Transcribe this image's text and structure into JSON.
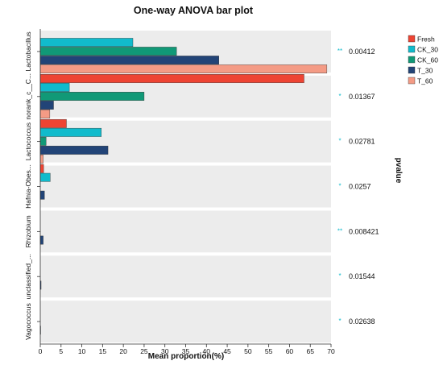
{
  "chart_data": {
    "type": "bar",
    "orientation": "horizontal",
    "title": "One-way ANOVA bar plot",
    "xlabel": "Mean proportion(%)",
    "right_axis_label": "pvalue",
    "xlim": [
      0,
      70
    ],
    "xticks": [
      0,
      5,
      10,
      15,
      20,
      25,
      30,
      35,
      40,
      45,
      50,
      55,
      60,
      65,
      70
    ],
    "grid": false,
    "legend_position": "top-right",
    "categories": [
      "Lactobacillus",
      "norank_c__C...",
      "Lactococcus",
      "Hafnia-Obes...",
      "Rhizobium",
      "unclassified_...",
      "Vagococcus"
    ],
    "series": [
      {
        "name": "Fresh",
        "color": "#ee4433",
        "values": [
          0.0,
          63.5,
          6.3,
          0.8,
          0.0,
          0.0,
          0.0
        ]
      },
      {
        "name": "CK_30",
        "color": "#11bbcc",
        "values": [
          22.3,
          7.0,
          14.7,
          2.4,
          0.0,
          0.0,
          0.0
        ]
      },
      {
        "name": "CK_60",
        "color": "#119977",
        "values": [
          32.8,
          25.0,
          1.4,
          0.0,
          0.0,
          0.0,
          0.0
        ]
      },
      {
        "name": "T_30",
        "color": "#224477",
        "values": [
          43.0,
          3.2,
          16.3,
          1.0,
          0.7,
          0.2,
          0.1
        ]
      },
      {
        "name": "T_60",
        "color": "#f49b85",
        "values": [
          69.0,
          2.3,
          0.7,
          0.0,
          0.0,
          0.0,
          0.0
        ]
      }
    ],
    "significance": [
      "**",
      "*",
      "*",
      "*",
      "**",
      "*",
      "*"
    ],
    "pvalues": [
      "0.00412",
      "0.01367",
      "0.02781",
      "0.0257",
      "0.008421",
      "0.01544",
      "0.02638"
    ],
    "significance_color": "#11bbcc"
  }
}
